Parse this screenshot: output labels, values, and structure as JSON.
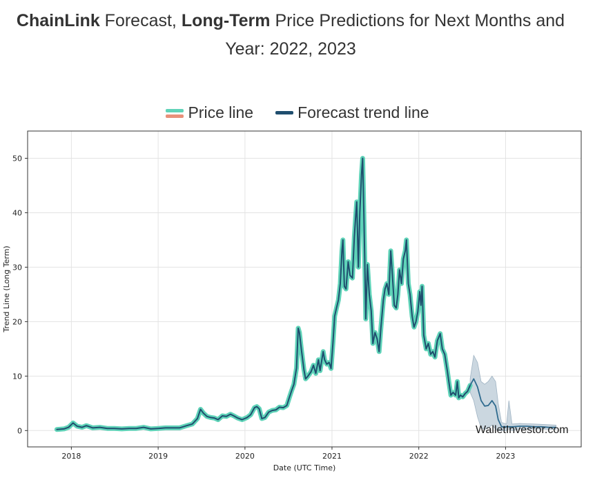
{
  "page": {
    "title_bold_1": "ChainLink",
    "title_plain_1": " Forecast, ",
    "title_bold_2": "Long-Term",
    "title_plain_2": " Price Predictions for Next Months and Year: 2022, 2023"
  },
  "colors": {
    "price_line": "#5fd3b8",
    "price_line_alt": "#e8907a",
    "forecast_line": "#1f4e6e",
    "forecast_band": "#b9c9d6",
    "grid": "#e3e3e3",
    "frame": "#333333"
  },
  "chart_data": {
    "type": "line",
    "legend": [
      "Price line",
      "Forecast trend line"
    ],
    "legend_position": "top-center",
    "xlabel": "Date (UTC Time)",
    "ylabel": "Trend Line (Long Term)",
    "x_ticks": [
      "2018",
      "2019",
      "2020",
      "2021",
      "2022",
      "2023"
    ],
    "y_ticks": [
      0,
      10,
      20,
      30,
      40,
      50
    ],
    "xlim": [
      "2017-07-01",
      "2023-11-15"
    ],
    "ylim": [
      -3,
      55
    ],
    "grid": true,
    "watermark": "WalletInvestor.com",
    "series": [
      {
        "name": "Price line",
        "points": [
          [
            "2017-11-01",
            0.2
          ],
          [
            "2017-12-01",
            0.3
          ],
          [
            "2017-12-20",
            0.6
          ],
          [
            "2018-01-08",
            1.4
          ],
          [
            "2018-01-25",
            0.8
          ],
          [
            "2018-02-15",
            0.6
          ],
          [
            "2018-03-05",
            0.9
          ],
          [
            "2018-04-01",
            0.5
          ],
          [
            "2018-05-01",
            0.6
          ],
          [
            "2018-06-01",
            0.4
          ],
          [
            "2018-07-01",
            0.4
          ],
          [
            "2018-08-01",
            0.3
          ],
          [
            "2018-09-01",
            0.4
          ],
          [
            "2018-10-01",
            0.4
          ],
          [
            "2018-11-01",
            0.6
          ],
          [
            "2018-12-01",
            0.3
          ],
          [
            "2019-01-01",
            0.4
          ],
          [
            "2019-02-01",
            0.5
          ],
          [
            "2019-03-01",
            0.5
          ],
          [
            "2019-04-01",
            0.5
          ],
          [
            "2019-05-01",
            0.9
          ],
          [
            "2019-05-25",
            1.2
          ],
          [
            "2019-06-15",
            2.2
          ],
          [
            "2019-06-28",
            3.9
          ],
          [
            "2019-07-10",
            3.2
          ],
          [
            "2019-07-25",
            2.6
          ],
          [
            "2019-08-10",
            2.4
          ],
          [
            "2019-08-25",
            2.3
          ],
          [
            "2019-09-10",
            2.0
          ],
          [
            "2019-09-28",
            2.7
          ],
          [
            "2019-10-15",
            2.6
          ],
          [
            "2019-11-01",
            3.0
          ],
          [
            "2019-11-15",
            2.7
          ],
          [
            "2019-12-01",
            2.3
          ],
          [
            "2019-12-20",
            2.0
          ],
          [
            "2020-01-10",
            2.4
          ],
          [
            "2020-01-25",
            2.9
          ],
          [
            "2020-02-10",
            4.2
          ],
          [
            "2020-02-20",
            4.4
          ],
          [
            "2020-03-01",
            4.0
          ],
          [
            "2020-03-12",
            2.2
          ],
          [
            "2020-03-25",
            2.4
          ],
          [
            "2020-04-10",
            3.4
          ],
          [
            "2020-04-25",
            3.7
          ],
          [
            "2020-05-10",
            3.8
          ],
          [
            "2020-05-25",
            4.3
          ],
          [
            "2020-06-10",
            4.2
          ],
          [
            "2020-06-25",
            4.6
          ],
          [
            "2020-07-05",
            6.0
          ],
          [
            "2020-07-15",
            7.3
          ],
          [
            "2020-07-25",
            8.5
          ],
          [
            "2020-08-05",
            11.5
          ],
          [
            "2020-08-12",
            18.8
          ],
          [
            "2020-08-17",
            18.0
          ],
          [
            "2020-08-25",
            15.0
          ],
          [
            "2020-09-05",
            11.2
          ],
          [
            "2020-09-12",
            9.5
          ],
          [
            "2020-09-22",
            10.0
          ],
          [
            "2020-10-05",
            10.8
          ],
          [
            "2020-10-15",
            12.0
          ],
          [
            "2020-10-25",
            10.5
          ],
          [
            "2020-11-05",
            13.0
          ],
          [
            "2020-11-12",
            11.0
          ],
          [
            "2020-11-25",
            14.5
          ],
          [
            "2020-12-01",
            13.0
          ],
          [
            "2020-12-10",
            12.2
          ],
          [
            "2020-12-20",
            12.5
          ],
          [
            "2020-12-28",
            11.4
          ],
          [
            "2021-01-05",
            16.0
          ],
          [
            "2021-01-12",
            21.0
          ],
          [
            "2021-01-20",
            22.5
          ],
          [
            "2021-01-28",
            24.0
          ],
          [
            "2021-02-05",
            27.0
          ],
          [
            "2021-02-12",
            33.0
          ],
          [
            "2021-02-16",
            35.0
          ],
          [
            "2021-02-22",
            26.5
          ],
          [
            "2021-03-01",
            26.0
          ],
          [
            "2021-03-10",
            31.0
          ],
          [
            "2021-03-18",
            28.5
          ],
          [
            "2021-03-28",
            28.0
          ],
          [
            "2021-04-05",
            35.5
          ],
          [
            "2021-04-10",
            39.0
          ],
          [
            "2021-04-15",
            42.0
          ],
          [
            "2021-04-22",
            30.0
          ],
          [
            "2021-04-28",
            40.0
          ],
          [
            "2021-05-05",
            47.0
          ],
          [
            "2021-05-10",
            50.0
          ],
          [
            "2021-05-15",
            40.0
          ],
          [
            "2021-05-19",
            31.0
          ],
          [
            "2021-05-23",
            20.5
          ],
          [
            "2021-05-30",
            30.5
          ],
          [
            "2021-06-07",
            25.0
          ],
          [
            "2021-06-15",
            22.0
          ],
          [
            "2021-06-22",
            16.0
          ],
          [
            "2021-07-01",
            18.0
          ],
          [
            "2021-07-10",
            16.8
          ],
          [
            "2021-07-18",
            14.5
          ],
          [
            "2021-07-26",
            19.0
          ],
          [
            "2021-08-05",
            24.0
          ],
          [
            "2021-08-12",
            26.0
          ],
          [
            "2021-08-20",
            27.0
          ],
          [
            "2021-08-28",
            25.0
          ],
          [
            "2021-09-05",
            33.0
          ],
          [
            "2021-09-12",
            28.5
          ],
          [
            "2021-09-20",
            23.0
          ],
          [
            "2021-09-28",
            22.5
          ],
          [
            "2021-10-05",
            25.0
          ],
          [
            "2021-10-12",
            29.5
          ],
          [
            "2021-10-20",
            27.0
          ],
          [
            "2021-10-28",
            31.5
          ],
          [
            "2021-11-05",
            33.0
          ],
          [
            "2021-11-10",
            35.0
          ],
          [
            "2021-11-18",
            27.0
          ],
          [
            "2021-11-25",
            25.0
          ],
          [
            "2021-12-04",
            21.0
          ],
          [
            "2021-12-12",
            19.0
          ],
          [
            "2021-12-20",
            20.0
          ],
          [
            "2021-12-28",
            21.8
          ],
          [
            "2022-01-05",
            25.5
          ],
          [
            "2022-01-10",
            23.0
          ],
          [
            "2022-01-15",
            26.5
          ],
          [
            "2022-01-22",
            17.5
          ],
          [
            "2022-02-01",
            15.0
          ],
          [
            "2022-02-10",
            16.0
          ],
          [
            "2022-02-20",
            14.0
          ],
          [
            "2022-03-01",
            14.5
          ],
          [
            "2022-03-10",
            13.5
          ],
          [
            "2022-03-20",
            16.5
          ],
          [
            "2022-04-01",
            17.8
          ],
          [
            "2022-04-10",
            15.0
          ],
          [
            "2022-04-20",
            14.0
          ],
          [
            "2022-05-01",
            11.0
          ],
          [
            "2022-05-09",
            8.5
          ],
          [
            "2022-05-16",
            6.5
          ],
          [
            "2022-05-25",
            7.0
          ],
          [
            "2022-06-05",
            6.5
          ],
          [
            "2022-06-12",
            9.0
          ],
          [
            "2022-06-18",
            6.0
          ],
          [
            "2022-06-25",
            6.5
          ],
          [
            "2022-07-05",
            6.2
          ],
          [
            "2022-07-15",
            6.8
          ],
          [
            "2022-07-25",
            7.2
          ],
          [
            "2022-08-05",
            8.3
          ]
        ]
      },
      {
        "name": "Forecast trend line",
        "points": [
          [
            "2022-08-05",
            8.3
          ],
          [
            "2022-08-20",
            9.5
          ],
          [
            "2022-09-05",
            8.0
          ],
          [
            "2022-09-20",
            5.5
          ],
          [
            "2022-10-05",
            4.5
          ],
          [
            "2022-10-20",
            4.6
          ],
          [
            "2022-11-05",
            5.5
          ],
          [
            "2022-11-20",
            4.5
          ],
          [
            "2022-12-01",
            2.0
          ],
          [
            "2022-12-15",
            0.7
          ],
          [
            "2023-01-01",
            0.7
          ],
          [
            "2023-02-01",
            0.7
          ],
          [
            "2023-03-01",
            0.8
          ],
          [
            "2023-04-01",
            0.8
          ],
          [
            "2023-05-01",
            0.7
          ],
          [
            "2023-06-01",
            0.7
          ],
          [
            "2023-07-01",
            0.6
          ],
          [
            "2023-08-01",
            0.6
          ]
        ],
        "band": [
          [
            "2022-08-05",
            7.0,
            9.5
          ],
          [
            "2022-08-20",
            5.5,
            13.8
          ],
          [
            "2022-09-05",
            2.5,
            12.5
          ],
          [
            "2022-09-20",
            0.5,
            9.0
          ],
          [
            "2022-10-05",
            0.2,
            8.5
          ],
          [
            "2022-10-20",
            0.5,
            9.0
          ],
          [
            "2022-11-05",
            1.0,
            10.0
          ],
          [
            "2022-11-20",
            0.3,
            9.0
          ],
          [
            "2022-12-01",
            0.0,
            5.0
          ],
          [
            "2022-12-15",
            0.0,
            1.5
          ],
          [
            "2023-01-05",
            0.0,
            1.2
          ],
          [
            "2023-01-15",
            0.3,
            5.5
          ],
          [
            "2023-01-28",
            0.0,
            1.2
          ],
          [
            "2023-03-01",
            0.3,
            1.3
          ],
          [
            "2023-05-01",
            0.3,
            1.2
          ],
          [
            "2023-08-01",
            0.2,
            1.0
          ]
        ]
      }
    ]
  }
}
